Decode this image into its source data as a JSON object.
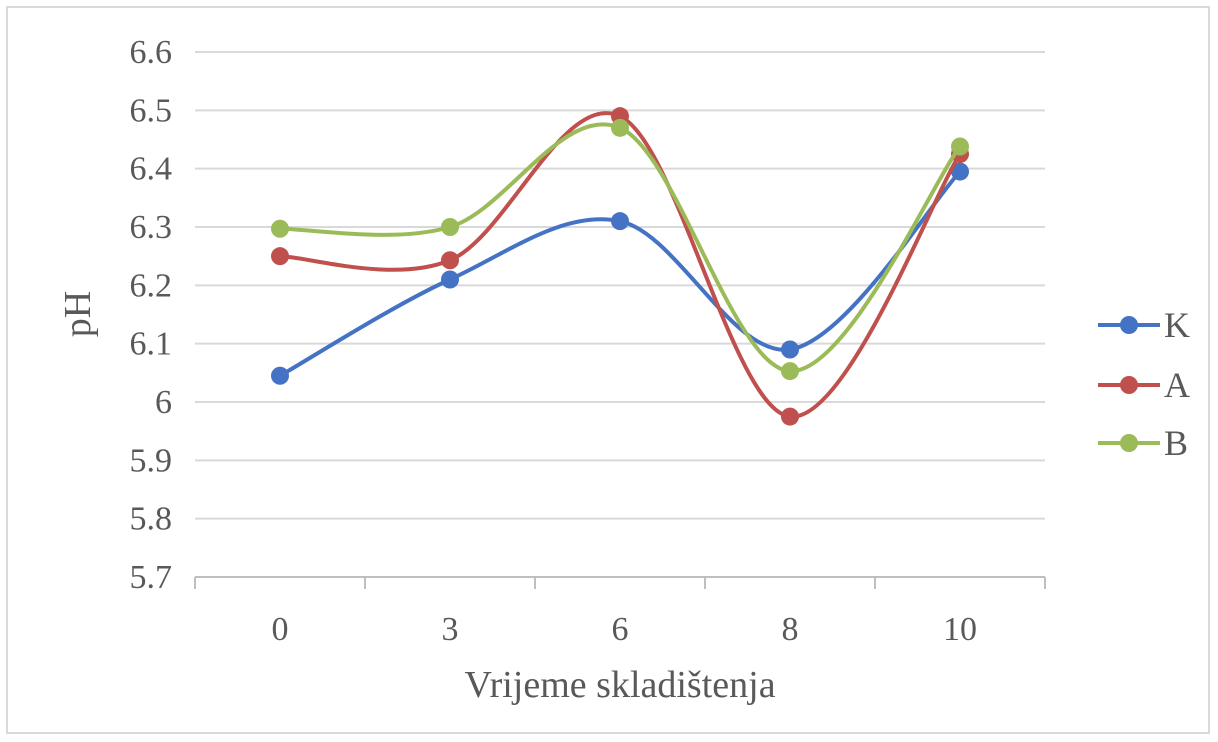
{
  "chart_data": {
    "type": "line",
    "title": "",
    "xlabel": "Vrijeme skladištenja",
    "ylabel": "pH",
    "categories": [
      "0",
      "3",
      "6",
      "8",
      "10"
    ],
    "yticks": [
      "5.7",
      "5.8",
      "5.9",
      "6",
      "6.1",
      "6.2",
      "6.3",
      "6.4",
      "6.5",
      "6.6"
    ],
    "ylim": [
      5.7,
      6.6
    ],
    "grid": true,
    "smooth": true,
    "legend_position": "right",
    "series": [
      {
        "name": "K",
        "color": "#4472c4",
        "values": [
          6.045,
          6.21,
          6.31,
          6.09,
          6.395
        ]
      },
      {
        "name": "A",
        "color": "#c0504d",
        "values": [
          6.25,
          6.243,
          6.49,
          5.975,
          6.425
        ]
      },
      {
        "name": "B",
        "color": "#9bbb59",
        "values": [
          6.297,
          6.3,
          6.47,
          6.053,
          6.438
        ]
      }
    ]
  }
}
